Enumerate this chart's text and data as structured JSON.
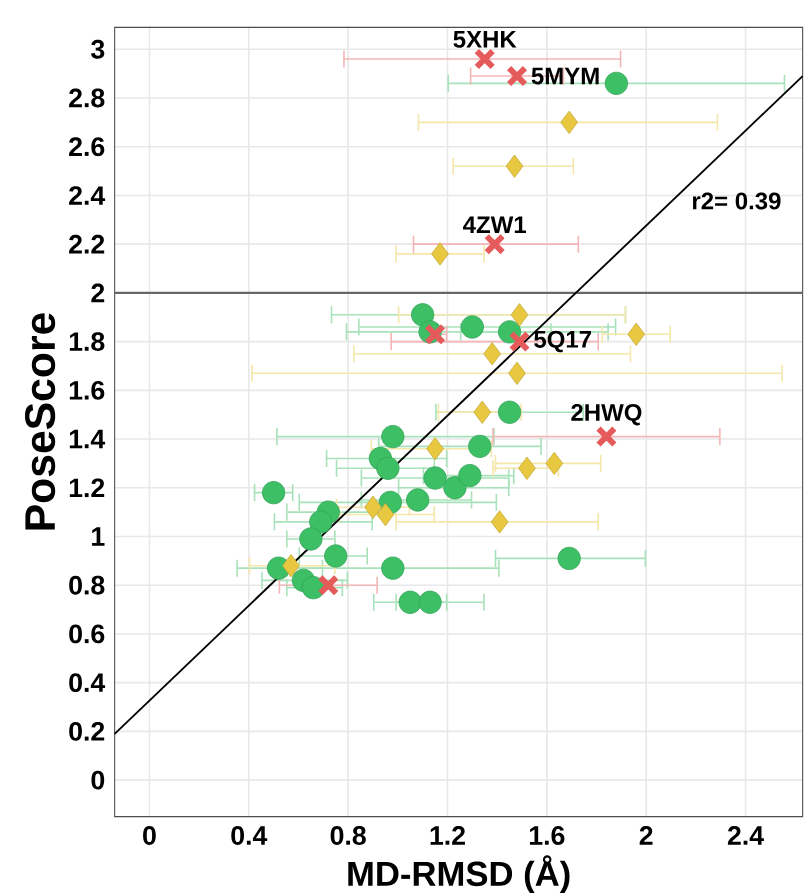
{
  "chart_data": {
    "type": "scatter",
    "xlabel": "MD-RMSD (Å)",
    "ylabel": "PoseScore",
    "xlim": [
      -0.14,
      2.63
    ],
    "ylim": [
      -0.15,
      3.09
    ],
    "xticks": [
      0,
      0.4,
      0.8,
      1.2,
      1.6,
      2,
      2.4
    ],
    "yticks": [
      0,
      0.2,
      0.4,
      0.6,
      0.8,
      1,
      1.2,
      1.4,
      1.6,
      1.8,
      2,
      2.2,
      2.4,
      2.6,
      2.8,
      3
    ],
    "grid": true,
    "ref_lines": [
      {
        "axis": "y",
        "value": 2,
        "color": "#666666"
      }
    ],
    "annotations": [
      {
        "text": "5XHK",
        "x": 1.35,
        "y": 2.96
      },
      {
        "text": "5MYM",
        "x": 1.48,
        "y": 2.89
      },
      {
        "text": "4ZW1",
        "x": 1.39,
        "y": 2.2
      },
      {
        "text": "5Q17",
        "x": 1.49,
        "y": 1.8
      },
      {
        "text": "2HWQ",
        "x": 1.84,
        "y": 1.41
      },
      "r2= 0.39"
    ],
    "series": [
      {
        "color": "#3dbf66",
        "marker": "circle",
        "x": [
          1.88,
          1.1,
          1.13,
          1.3,
          1.45,
          1.45,
          0.98,
          1.33,
          0.93,
          0.96,
          0.5,
          1.15,
          1.23,
          1.29,
          1.08,
          0.97,
          0.72,
          0.69,
          0.65,
          0.75,
          0.98,
          1.69,
          0.52,
          0.62,
          0.66,
          1.05,
          1.13
        ],
        "values": [
          2.86,
          1.91,
          1.84,
          1.86,
          1.84,
          1.51,
          1.41,
          1.37,
          1.32,
          1.28,
          1.18,
          1.24,
          1.2,
          1.25,
          1.15,
          1.14,
          1.1,
          1.06,
          0.99,
          0.92,
          0.87,
          0.91,
          0.87,
          0.82,
          0.79,
          0.73,
          0.73
        ],
        "xerrors": [
          [
            1.2,
            2.56
          ],
          [
            0.73,
            1.92
          ],
          [
            0.79,
            1.85
          ],
          [
            0.84,
            1.88
          ],
          [
            1.25,
            1.62
          ],
          [
            1.15,
            1.75
          ],
          [
            0.51,
            1.39
          ],
          [
            0.92,
            1.58
          ],
          [
            0.71,
            1.2
          ],
          [
            0.75,
            1.15
          ],
          [
            0.42,
            0.58
          ],
          [
            0.85,
            1.45
          ],
          [
            1.0,
            1.45
          ],
          [
            1.1,
            1.47
          ],
          [
            0.85,
            1.3
          ],
          [
            0.6,
            1.4
          ],
          [
            0.55,
            0.95
          ],
          [
            0.5,
            0.9
          ],
          [
            0.55,
            0.75
          ],
          [
            0.6,
            0.88
          ],
          [
            0.55,
            1.41
          ],
          [
            1.39,
            2.0
          ],
          [
            0.35,
            0.7
          ],
          [
            0.45,
            0.8
          ],
          [
            0.55,
            0.78
          ],
          [
            0.9,
            1.2
          ],
          [
            0.99,
            1.35
          ]
        ]
      },
      {
        "color": "#e8c840",
        "marker": "diamond",
        "x": [
          1.69,
          1.47,
          1.17,
          1.49,
          1.96,
          1.38,
          1.48,
          1.34,
          1.15,
          1.63,
          1.52,
          0.9,
          0.95,
          1.41,
          0.57
        ],
        "values": [
          2.7,
          2.52,
          2.16,
          1.91,
          1.83,
          1.75,
          1.67,
          1.51,
          1.36,
          1.3,
          1.28,
          1.12,
          1.09,
          1.06,
          0.88
        ],
        "xerrors": [
          [
            1.08,
            2.29
          ],
          [
            1.22,
            1.71
          ],
          [
            0.99,
            1.35
          ],
          [
            1.0,
            1.92
          ],
          [
            1.82,
            2.1
          ],
          [
            0.82,
            1.94
          ],
          [
            0.41,
            2.55
          ],
          [
            1.16,
            1.5
          ],
          [
            0.89,
            1.38
          ],
          [
            1.39,
            1.82
          ],
          [
            1.38,
            1.65
          ],
          [
            0.75,
            1.05
          ],
          [
            0.76,
            1.15
          ],
          [
            0.99,
            1.81
          ],
          [
            0.4,
            0.75
          ]
        ]
      },
      {
        "color": "#e55a5a",
        "marker": "cross",
        "x": [
          1.35,
          1.48,
          1.39,
          1.15,
          1.49,
          1.84,
          0.72
        ],
        "values": [
          2.96,
          2.89,
          2.2,
          1.83,
          1.8,
          1.41,
          0.8
        ],
        "xerrors": [
          [
            0.78,
            1.9
          ],
          [
            1.29,
            1.67
          ],
          [
            1.06,
            1.73
          ],
          [
            1.1,
            1.2
          ],
          [
            0.97,
            1.81
          ],
          [
            1.38,
            2.3
          ],
          [
            0.52,
            0.92
          ]
        ]
      },
      {
        "type": "line",
        "color": "#000000",
        "x": [
          -0.14,
          2.63
        ],
        "values": [
          0.19,
          2.89
        ]
      }
    ]
  }
}
